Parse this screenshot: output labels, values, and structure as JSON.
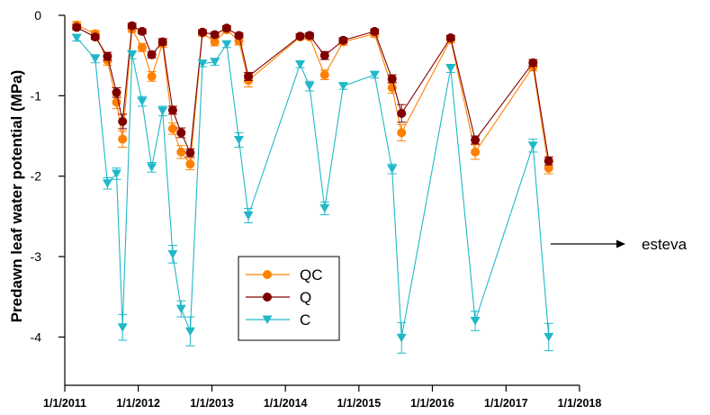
{
  "chart_data": {
    "type": "line",
    "ylabel": "Predawn leaf water potential (MPa)",
    "xlabel": "",
    "x_tick_labels": [
      "1/1/2011",
      "1/1/2012",
      "1/1/2013",
      "1/1/2014",
      "1/1/2015",
      "1/1/2016",
      "1/1/2017",
      "1/1/2018"
    ],
    "x_ticks": [
      "2011-01-01",
      "2012-01-01",
      "2013-01-01",
      "2014-01-01",
      "2015-01-01",
      "2016-01-01",
      "2017-01-01",
      "2018-01-01"
    ],
    "xlim": [
      "2011-01-01",
      "2018-01-01"
    ],
    "ylim": [
      -4.6,
      0
    ],
    "y_ticks": [
      0,
      -1,
      -2,
      -3,
      -4
    ],
    "y_tick_labels": [
      "0",
      "-1",
      "-2",
      "-3",
      "-4"
    ],
    "legend_position": "bottom-center",
    "annotation": {
      "text": "esteva",
      "arrow": "right"
    },
    "series": [
      {
        "name": "QC",
        "color": "#ff8000",
        "marker": "circle",
        "x": [
          "2011-03-01",
          "2011-06-01",
          "2011-08-01",
          "2011-09-15",
          "2011-10-15",
          "2011-12-01",
          "2012-01-20",
          "2012-03-08",
          "2012-05-01",
          "2012-06-20",
          "2012-08-01",
          "2012-09-15",
          "2012-11-15",
          "2013-01-15",
          "2013-03-15",
          "2013-05-15",
          "2013-07-01",
          "2014-03-15",
          "2014-05-01",
          "2014-07-15",
          "2014-10-15",
          "2015-03-20",
          "2015-06-15",
          "2015-08-01",
          "2016-04-01",
          "2016-08-01",
          "2017-05-15",
          "2017-08-01"
        ],
        "values": [
          -0.12,
          -0.23,
          -0.56,
          -1.08,
          -1.54,
          -0.17,
          -0.4,
          -0.76,
          -0.35,
          -1.41,
          -1.7,
          -1.85,
          -0.22,
          -0.33,
          -0.18,
          -0.32,
          -0.81,
          -0.27,
          -0.27,
          -0.74,
          -0.33,
          -0.23,
          -0.9,
          -1.46,
          -0.3,
          -1.7,
          -0.64,
          -1.9
        ],
        "err": [
          0.04,
          0.04,
          0.06,
          0.08,
          0.1,
          0.04,
          0.05,
          0.06,
          0.05,
          0.07,
          0.08,
          0.07,
          0.04,
          0.05,
          0.04,
          0.05,
          0.08,
          0.03,
          0.03,
          0.06,
          0.04,
          0.04,
          0.07,
          0.1,
          0.04,
          0.09,
          0.05,
          0.07
        ]
      },
      {
        "name": "Q",
        "color": "#800000",
        "marker": "circle",
        "x": [
          "2011-03-01",
          "2011-06-01",
          "2011-08-01",
          "2011-09-15",
          "2011-10-15",
          "2011-12-01",
          "2012-01-20",
          "2012-03-08",
          "2012-05-01",
          "2012-06-20",
          "2012-08-01",
          "2012-09-15",
          "2012-11-15",
          "2013-01-15",
          "2013-03-15",
          "2013-05-15",
          "2013-07-01",
          "2014-03-15",
          "2014-05-01",
          "2014-07-15",
          "2014-10-15",
          "2015-03-20",
          "2015-06-15",
          "2015-08-01",
          "2016-04-01",
          "2016-08-01",
          "2017-05-15",
          "2017-08-01"
        ],
        "values": [
          -0.15,
          -0.27,
          -0.51,
          -0.96,
          -1.32,
          -0.13,
          -0.2,
          -0.49,
          -0.33,
          -1.18,
          -1.46,
          -1.71,
          -0.21,
          -0.24,
          -0.16,
          -0.25,
          -0.76,
          -0.26,
          -0.25,
          -0.5,
          -0.31,
          -0.2,
          -0.79,
          -1.22,
          -0.28,
          -1.55,
          -0.59,
          -1.81
        ],
        "err": [
          0.03,
          0.03,
          0.05,
          0.06,
          0.09,
          0.03,
          0.03,
          0.04,
          0.04,
          0.05,
          0.06,
          0.05,
          0.03,
          0.03,
          0.03,
          0.03,
          0.05,
          0.03,
          0.03,
          0.05,
          0.03,
          0.03,
          0.05,
          0.11,
          0.03,
          0.05,
          0.04,
          0.05
        ]
      },
      {
        "name": "C",
        "color": "#20b8c8",
        "marker": "triangle-down",
        "x": [
          "2011-03-01",
          "2011-06-01",
          "2011-08-01",
          "2011-09-15",
          "2011-10-15",
          "2011-12-01",
          "2012-01-20",
          "2012-03-08",
          "2012-05-01",
          "2012-06-20",
          "2012-08-01",
          "2012-09-15",
          "2012-11-15",
          "2013-01-15",
          "2013-03-15",
          "2013-05-15",
          "2013-07-01",
          "2014-03-15",
          "2014-05-01",
          "2014-07-15",
          "2014-10-15",
          "2015-03-20",
          "2015-06-15",
          "2015-08-01",
          "2016-04-01",
          "2016-08-01",
          "2017-05-15",
          "2017-08-01"
        ],
        "values": [
          -0.28,
          -0.54,
          -2.09,
          -1.97,
          -3.88,
          -0.49,
          -1.07,
          -1.89,
          -1.19,
          -2.97,
          -3.65,
          -3.93,
          -0.6,
          -0.58,
          -0.36,
          -1.55,
          -2.49,
          -0.61,
          -0.88,
          -2.4,
          -0.88,
          -0.74,
          -1.91,
          -4.01,
          -0.66,
          -3.8,
          -1.62,
          -4.0
        ],
        "err": [
          0.04,
          0.05,
          0.07,
          0.07,
          0.16,
          0.05,
          0.06,
          0.06,
          0.06,
          0.11,
          0.1,
          0.18,
          0.04,
          0.04,
          0.04,
          0.09,
          0.09,
          0.04,
          0.06,
          0.08,
          0.04,
          0.04,
          0.06,
          0.19,
          0.05,
          0.12,
          0.08,
          0.17
        ]
      }
    ]
  }
}
